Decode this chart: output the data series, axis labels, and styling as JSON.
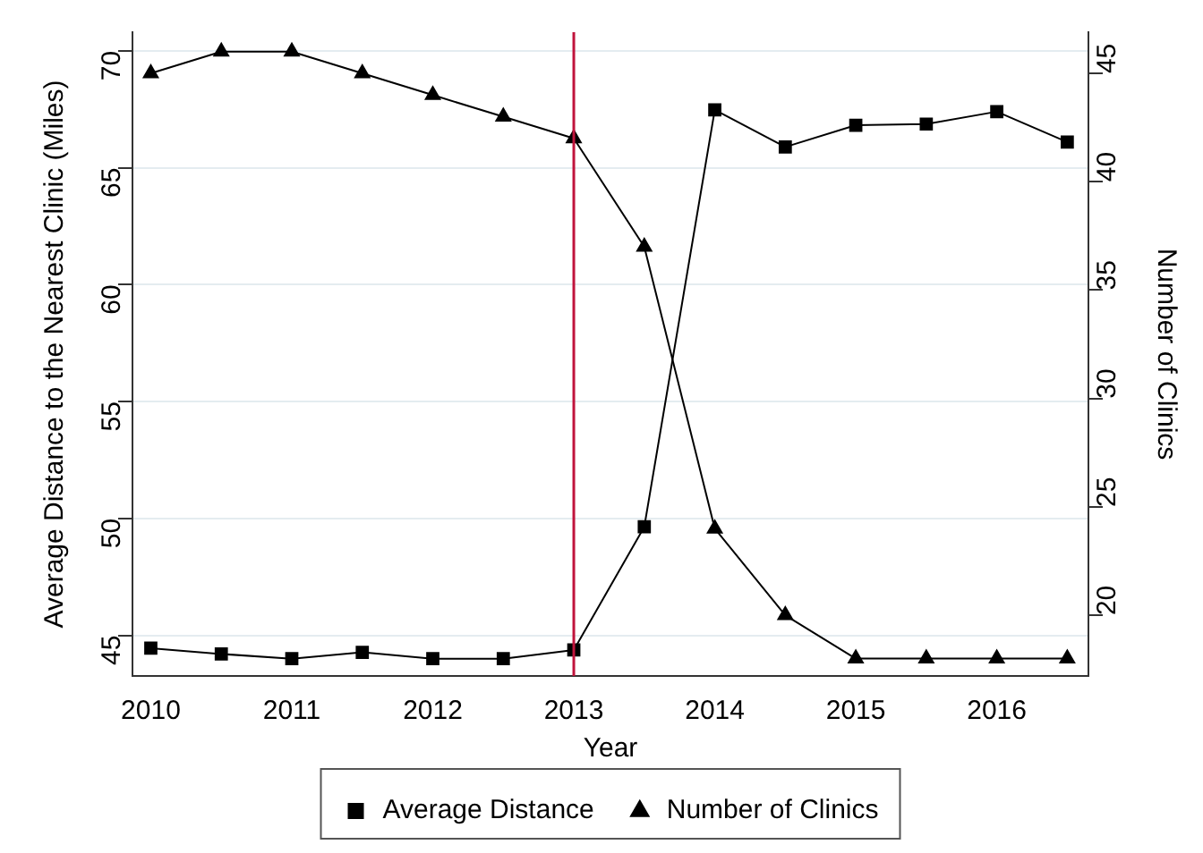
{
  "chart_data": {
    "type": "line",
    "xlabel": "Year",
    "ylabel": "Average Distance to the Nearest Clinic (Miles)",
    "y2label": "Number of Clinics",
    "x": [
      2010,
      2010.5,
      2011,
      2011.5,
      2012,
      2012.5,
      2013,
      2013.5,
      2014,
      2014.5,
      2015,
      2015.5,
      2016,
      2016.5
    ],
    "series": [
      {
        "name": "Average Distance",
        "color": "#000000",
        "marker": "square",
        "values": [
          44.45,
          44.2,
          44.0,
          44.27,
          44.0,
          44.0,
          44.37,
          49.64,
          67.48,
          65.89,
          66.82,
          66.87,
          67.4,
          66.1
        ]
      },
      {
        "name": "Number of Clinics",
        "color": "#000000",
        "marker": "triangle",
        "axis": "y2",
        "values": [
          45,
          46,
          46,
          45,
          44,
          43,
          42,
          37,
          24,
          20,
          18,
          18,
          18,
          18
        ]
      }
    ],
    "xlim": [
      2009.87,
      2016.65
    ],
    "xticks": [
      2010,
      2011,
      2012,
      2013,
      2014,
      2015,
      2016
    ],
    "ylim": [
      43.26,
      70.8
    ],
    "yticks": [
      45,
      50,
      55,
      60,
      65,
      70
    ],
    "y2lim": [
      17.2,
      46.9
    ],
    "y2ticks": [
      20,
      25,
      30,
      35,
      40,
      45
    ],
    "ref_lines": [
      {
        "axis": "x",
        "value": 2013,
        "color": "#c0143c"
      }
    ],
    "grid": "y",
    "legend": "bottom",
    "line_style": "solid"
  }
}
